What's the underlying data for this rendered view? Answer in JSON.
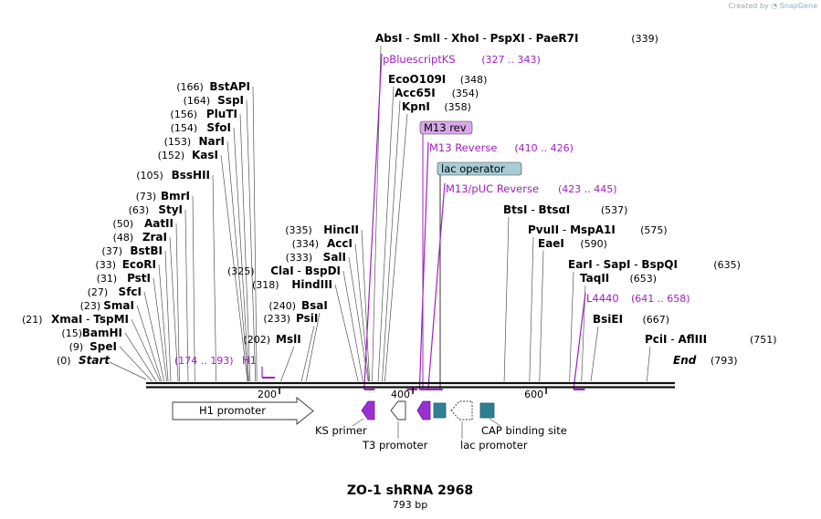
{
  "credit": {
    "prefix": "Created by",
    "brand": "SnapGene"
  },
  "map": {
    "title": "ZO-1 shRNA 2968",
    "length_label": "793 bp",
    "length": 793,
    "scale_ticks": [
      {
        "value": 200,
        "label": "200"
      },
      {
        "value": 400,
        "label": "400"
      },
      {
        "value": 600,
        "label": "600"
      }
    ],
    "start_label": "Start",
    "start_pos": "(0)",
    "end_label": "End",
    "end_pos": "(793)",
    "sites": [
      {
        "names": [
          "SpeI"
        ],
        "pos": "(9)",
        "bp": 9
      },
      {
        "names": [
          "BamHI"
        ],
        "pos": "(15)",
        "bp": 15
      },
      {
        "names": [
          "XmaI",
          "TspMI"
        ],
        "pos": "(21)",
        "bp": 21
      },
      {
        "names": [
          "SmaI"
        ],
        "pos": "(23)",
        "bp": 23
      },
      {
        "names": [
          "SfcI"
        ],
        "pos": "(27)",
        "bp": 27
      },
      {
        "names": [
          "PstI"
        ],
        "pos": "(31)",
        "bp": 31
      },
      {
        "names": [
          "EcoRI"
        ],
        "pos": "(33)",
        "bp": 33
      },
      {
        "names": [
          "BstBI"
        ],
        "pos": "(37)",
        "bp": 37
      },
      {
        "names": [
          "ZraI"
        ],
        "pos": "(48)",
        "bp": 48
      },
      {
        "names": [
          "AatII"
        ],
        "pos": "(50)",
        "bp": 50
      },
      {
        "names": [
          "StyI"
        ],
        "pos": "(63)",
        "bp": 63
      },
      {
        "names": [
          "BmrI"
        ],
        "pos": "(73)",
        "bp": 73
      },
      {
        "names": [
          "BssHII"
        ],
        "pos": "(105)",
        "bp": 105
      },
      {
        "names": [
          "KasI"
        ],
        "pos": "(152)",
        "bp": 152
      },
      {
        "names": [
          "NarI"
        ],
        "pos": "(153)",
        "bp": 153
      },
      {
        "names": [
          "SfoI"
        ],
        "pos": "(154)",
        "bp": 154
      },
      {
        "names": [
          "PluTI"
        ],
        "pos": "(156)",
        "bp": 156
      },
      {
        "names": [
          "SspI"
        ],
        "pos": "(164)",
        "bp": 164
      },
      {
        "names": [
          "BstAPI"
        ],
        "pos": "(166)",
        "bp": 166
      },
      {
        "names": [
          "MslI"
        ],
        "pos": "(202)",
        "bp": 202
      },
      {
        "names": [
          "PsiI"
        ],
        "pos": "(233)",
        "bp": 233
      },
      {
        "names": [
          "BsaI"
        ],
        "pos": "(240)",
        "bp": 240
      },
      {
        "names": [
          "HindIII"
        ],
        "pos": "(318)",
        "bp": 318
      },
      {
        "names": [
          "ClaI",
          "BspDI"
        ],
        "pos": "(325)",
        "bp": 325
      },
      {
        "names": [
          "SalI"
        ],
        "pos": "(333)",
        "bp": 333
      },
      {
        "names": [
          "AccI"
        ],
        "pos": "(334)",
        "bp": 334
      },
      {
        "names": [
          "HincII"
        ],
        "pos": "(335)",
        "bp": 335
      },
      {
        "names": [
          "AbsI",
          "SmlI",
          "XhoI",
          "PspXI",
          "PaeR7I"
        ],
        "pos": "(339)",
        "bp": 339
      },
      {
        "names": [
          "EcoO109I"
        ],
        "pos": "(348)",
        "bp": 348
      },
      {
        "names": [
          "Acc65I"
        ],
        "pos": "(354)",
        "bp": 354
      },
      {
        "names": [
          "KpnI"
        ],
        "pos": "(358)",
        "bp": 358
      },
      {
        "names": [
          "BtsI",
          "BtsαI"
        ],
        "pos": "(537)",
        "bp": 537
      },
      {
        "names": [
          "PvuII",
          "MspA1I"
        ],
        "pos": "(575)",
        "bp": 575
      },
      {
        "names": [
          "EaeI"
        ],
        "pos": "(590)",
        "bp": 590
      },
      {
        "names": [
          "EarI",
          "SapI",
          "BspQI"
        ],
        "pos": "(635)",
        "bp": 635
      },
      {
        "names": [
          "TaqII"
        ],
        "pos": "(653)",
        "bp": 653
      },
      {
        "names": [
          "BsiEI"
        ],
        "pos": "(667)",
        "bp": 667
      },
      {
        "names": [
          "PciI",
          "AflIII"
        ],
        "pos": "(751)",
        "bp": 751
      }
    ],
    "primers": [
      {
        "name": "H1",
        "range": "(174 .. 193)",
        "start": 174,
        "end": 193
      },
      {
        "name": "pBluescriptKS",
        "range": "(327 .. 343)",
        "start": 327,
        "end": 343
      },
      {
        "name": "M13 rev",
        "range": "",
        "start": 391,
        "end": 407
      },
      {
        "name": "M13 Reverse",
        "range": "(410 .. 426)",
        "start": 410,
        "end": 426
      },
      {
        "name": "lac operator",
        "range": "",
        "start": 428,
        "end": 444
      },
      {
        "name": "M13/pUC Reverse",
        "range": "(423 .. 445)",
        "start": 423,
        "end": 445
      },
      {
        "name": "L4440",
        "range": "(641 .. 658)",
        "start": 641,
        "end": 658
      }
    ],
    "features": [
      {
        "name": "H1 promoter"
      },
      {
        "name": "KS primer"
      },
      {
        "name": "T3 promoter"
      },
      {
        "name": "lac promoter"
      },
      {
        "name": "CAP binding site"
      }
    ],
    "colors": {
      "primer": "#a020c0",
      "teal": "#2e7f92",
      "lac_operator_bg": "#a9cdd6",
      "m13_bg": "#d9a8ea"
    }
  }
}
